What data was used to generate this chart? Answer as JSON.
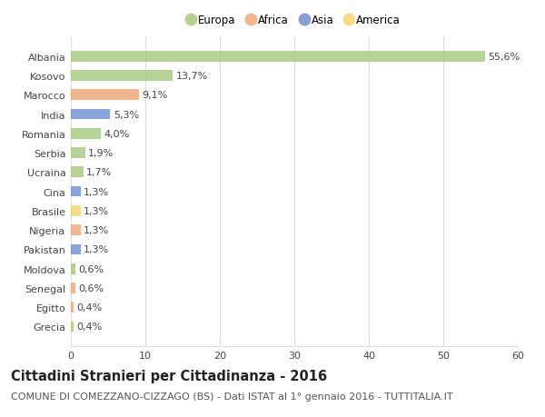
{
  "countries": [
    "Albania",
    "Kosovo",
    "Marocco",
    "India",
    "Romania",
    "Serbia",
    "Ucraina",
    "Cina",
    "Brasile",
    "Nigeria",
    "Pakistan",
    "Moldova",
    "Senegal",
    "Egitto",
    "Grecia"
  ],
  "values": [
    55.6,
    13.7,
    9.1,
    5.3,
    4.0,
    1.9,
    1.7,
    1.3,
    1.3,
    1.3,
    1.3,
    0.6,
    0.6,
    0.4,
    0.4
  ],
  "labels": [
    "55,6%",
    "13,7%",
    "9,1%",
    "5,3%",
    "4,0%",
    "1,9%",
    "1,7%",
    "1,3%",
    "1,3%",
    "1,3%",
    "1,3%",
    "0,6%",
    "0,6%",
    "0,4%",
    "0,4%"
  ],
  "colors": [
    "#a8c97f",
    "#a8c97f",
    "#f0a878",
    "#6e8fcf",
    "#a8c97f",
    "#a8c97f",
    "#a8c97f",
    "#6e8fcf",
    "#f5d76e",
    "#f0a878",
    "#6e8fcf",
    "#a8c97f",
    "#f0a878",
    "#f0a878",
    "#a8c97f"
  ],
  "legend_labels": [
    "Europa",
    "Africa",
    "Asia",
    "America"
  ],
  "legend_colors": [
    "#a8c97f",
    "#f0a878",
    "#6e8fcf",
    "#f5d76e"
  ],
  "title": "Cittadini Stranieri per Cittadinanza - 2016",
  "subtitle": "COMUNE DI COMEZZANO-CIZZAGO (BS) - Dati ISTAT al 1° gennaio 2016 - TUTTITALIA.IT",
  "xlim": [
    0,
    60
  ],
  "xticks": [
    0,
    10,
    20,
    30,
    40,
    50,
    60
  ],
  "bg_color": "#ffffff",
  "grid_color": "#dddddd",
  "bar_height": 0.55,
  "title_fontsize": 10.5,
  "subtitle_fontsize": 8,
  "label_fontsize": 8,
  "tick_fontsize": 8,
  "legend_fontsize": 8.5
}
